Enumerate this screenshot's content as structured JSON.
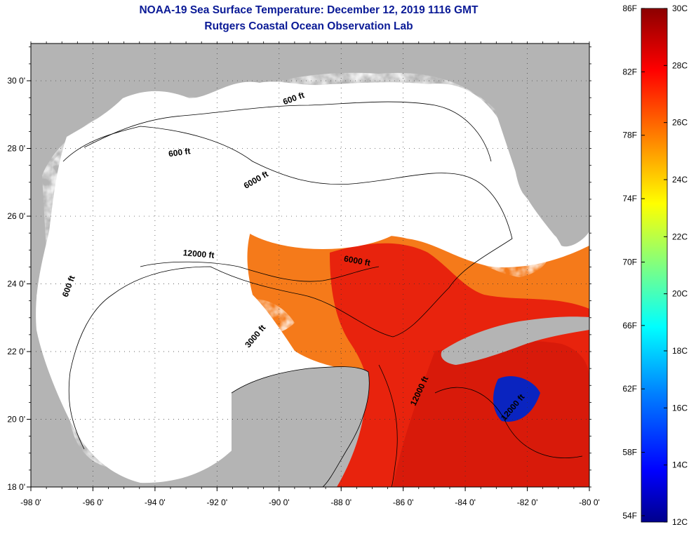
{
  "title": "NOAA-19 Sea Surface Temperature:  December 12, 2019 1116 GMT",
  "subtitle": "Rutgers Coastal Ocean Observation Lab",
  "map": {
    "lon_range": [
      -98,
      -80
    ],
    "lat_range": [
      18,
      31
    ],
    "lon_ticks": [
      {
        "v": -98,
        "label": "-98 0'"
      },
      {
        "v": -96,
        "label": "-96 0'"
      },
      {
        "v": -94,
        "label": "-94 0'"
      },
      {
        "v": -92,
        "label": "-92 0'"
      },
      {
        "v": -90,
        "label": "-90 0'"
      },
      {
        "v": -88,
        "label": "-88 0'"
      },
      {
        "v": -86,
        "label": "-86 0'"
      },
      {
        "v": -84,
        "label": "-84 0'"
      },
      {
        "v": -82,
        "label": "-82 0'"
      },
      {
        "v": -80,
        "label": "-80 0'"
      }
    ],
    "lat_ticks": [
      {
        "v": 30,
        "label": "30 0'"
      },
      {
        "v": 28,
        "label": "28 0'"
      },
      {
        "v": 26,
        "label": "26 0'"
      },
      {
        "v": 24,
        "label": "24 0'"
      },
      {
        "v": 22,
        "label": "22 0'"
      },
      {
        "v": 20,
        "label": "20 0'"
      },
      {
        "v": 18,
        "label": "18 0'"
      }
    ],
    "contour_labels": [
      {
        "text": "600 ft",
        "lon": -93.2,
        "lat": 27.8,
        "rot": -8
      },
      {
        "text": "6000 ft",
        "lon": -90.7,
        "lat": 27.0,
        "rot": -30
      },
      {
        "text": "12000 ft",
        "lon": -92.6,
        "lat": 24.8,
        "rot": 5
      },
      {
        "text": "600 ft",
        "lon": -96.7,
        "lat": 23.9,
        "rot": -70
      },
      {
        "text": "6000 ft",
        "lon": -87.5,
        "lat": 24.6,
        "rot": 10
      },
      {
        "text": "600 ft",
        "lon": -89.5,
        "lat": 29.4,
        "rot": -20
      },
      {
        "text": "3000 ft",
        "lon": -90.7,
        "lat": 22.4,
        "rot": -50
      },
      {
        "text": "12000 ft",
        "lon": -85.4,
        "lat": 20.8,
        "rot": -65
      },
      {
        "text": "12000 ft",
        "lon": -82.4,
        "lat": 20.3,
        "rot": -50
      }
    ],
    "colors": {
      "land": "#b4b4b4",
      "cloud": "#ffffff"
    }
  },
  "colorbar": {
    "fahrenheit_labels": [
      "86F",
      "82F",
      "78F",
      "74F",
      "70F",
      "66F",
      "62F",
      "58F",
      "54F"
    ],
    "celsius_labels": [
      "30C",
      "28C",
      "26C",
      "24C",
      "22C",
      "20C",
      "18C",
      "16C",
      "14C",
      "12C"
    ],
    "range_c": [
      12,
      30
    ],
    "stops": [
      "#00008c",
      "#0000ff",
      "#0080ff",
      "#00ffff",
      "#80ff80",
      "#ffff00",
      "#ff8000",
      "#ff0000",
      "#8c0000"
    ]
  }
}
